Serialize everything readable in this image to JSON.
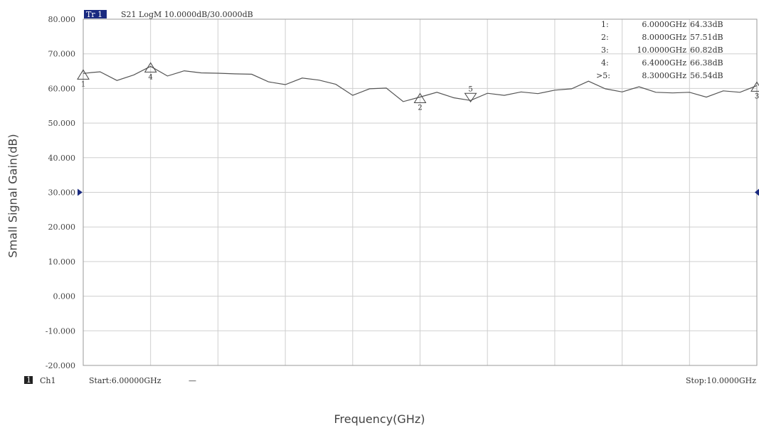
{
  "trace_header": {
    "trace_badge": "Tr 1",
    "trace_info": "S21 LogM 10.0000dB/30.0000dB"
  },
  "footer": {
    "channel_badge": "1",
    "channel_label": "Ch1",
    "start_label": "Start:6.00000GHz",
    "start_dash": "—",
    "stop_label": "Stop:10.0000GHz"
  },
  "marker_table": [
    {
      "index": "1:",
      "freq": "6.0000GHz",
      "value": "64.33dB"
    },
    {
      "index": "2:",
      "freq": "8.0000GHz",
      "value": "57.51dB"
    },
    {
      "index": "3:",
      "freq": "10.0000GHz",
      "value": "60.82dB"
    },
    {
      "index": "4:",
      "freq": "6.4000GHz",
      "value": "66.38dB"
    },
    {
      "index": ">5:",
      "freq": "8.3000GHz",
      "value": "56.54dB"
    }
  ],
  "colors": {
    "trace": "#555555",
    "grid": "#cfcfcf",
    "badge": "#1a2a80",
    "ref_arrow": "#1a2a80"
  },
  "chart_data": {
    "type": "line",
    "xlabel": "Frequency(GHz)",
    "ylabel": "Small Signal Gain(dB)",
    "xlim": [
      6.0,
      10.0
    ],
    "ylim": [
      -20,
      80
    ],
    "x_divisions": 10,
    "y_ticks": [
      80,
      70,
      60,
      50,
      40,
      30,
      20,
      10,
      0,
      -10,
      -20
    ],
    "y_tick_labels": [
      "80.000",
      "70.000",
      "60.000",
      "50.000",
      "40.000",
      "30.000",
      "20.000",
      "10.000",
      "0.000",
      "-10.000",
      "-20.000"
    ],
    "reference_level": 30,
    "grid": true,
    "series": [
      {
        "x": [
          6.0,
          6.05,
          6.1,
          6.2,
          6.3,
          6.4,
          6.5,
          6.6,
          6.7,
          6.8,
          6.9,
          7.0,
          7.1,
          7.2,
          7.3,
          7.4,
          7.5,
          7.6,
          7.7,
          7.8,
          7.9,
          8.0,
          8.1,
          8.2,
          8.3,
          8.4,
          8.5,
          8.6,
          8.7,
          8.8,
          8.9,
          9.0,
          9.1,
          9.2,
          9.3,
          9.4,
          9.5,
          9.6,
          9.7,
          9.8,
          9.9,
          10.0
        ],
        "y": [
          64.33,
          64.6,
          64.8,
          62.3,
          63.9,
          66.38,
          63.6,
          65.1,
          64.5,
          64.4,
          64.2,
          64.1,
          61.9,
          61.1,
          63.0,
          62.4,
          61.2,
          58.0,
          59.9,
          60.1,
          56.2,
          57.51,
          58.9,
          57.3,
          56.54,
          58.6,
          58.0,
          59.0,
          58.5,
          59.5,
          59.9,
          62.1,
          59.9,
          59.0,
          60.5,
          58.9,
          58.7,
          58.9,
          57.5,
          59.3,
          58.9,
          60.82
        ]
      }
    ],
    "markers": [
      {
        "label": "1",
        "x": 6.0,
        "y": 64.33,
        "symbol": "up-triangle"
      },
      {
        "label": "4",
        "x": 6.4,
        "y": 66.38,
        "symbol": "up-triangle"
      },
      {
        "label": "2",
        "x": 8.0,
        "y": 57.51,
        "symbol": "up-triangle"
      },
      {
        "label": "5",
        "x": 8.3,
        "y": 56.54,
        "symbol": "down-triangle"
      },
      {
        "label": "3",
        "x": 10.0,
        "y": 60.82,
        "symbol": "up-triangle"
      }
    ]
  }
}
